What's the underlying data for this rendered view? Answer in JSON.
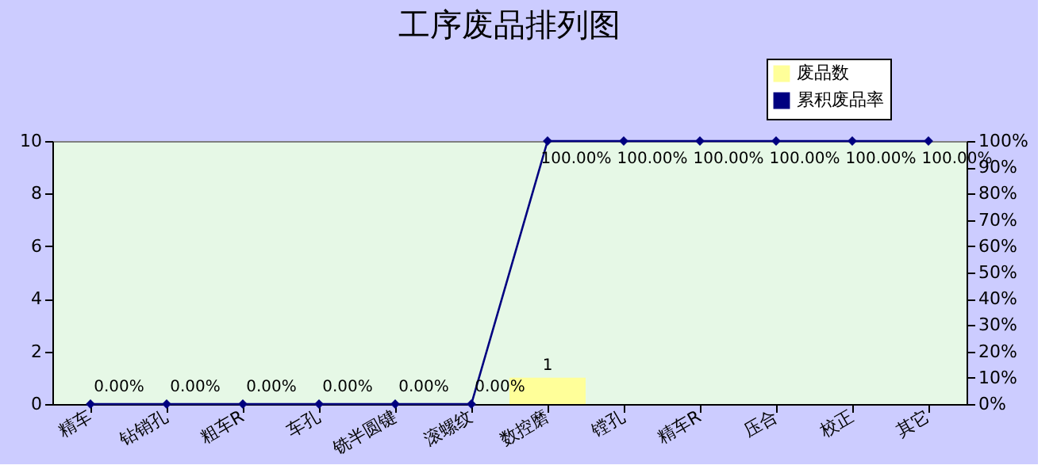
{
  "chart_data": {
    "type": "bar",
    "title": "工序废品排列图",
    "categories": [
      "精车",
      "钻销孔",
      "粗车R",
      "车孔",
      "铣半圆键",
      "滚螺纹",
      "数控磨",
      "镗孔",
      "精车R",
      "压合",
      "校正",
      "其它"
    ],
    "series": [
      {
        "name": "废品数",
        "type": "bar",
        "color": "#ffff99",
        "values": [
          0,
          0,
          0,
          0,
          0,
          0,
          1,
          0,
          0,
          0,
          0,
          0
        ],
        "value_labels": [
          null,
          null,
          null,
          null,
          null,
          null,
          "1",
          null,
          null,
          null,
          null,
          null
        ]
      },
      {
        "name": "累积废品率",
        "type": "line",
        "axis": "y2",
        "color": "#000080",
        "values": [
          0,
          0,
          0,
          0,
          0,
          0,
          100,
          100,
          100,
          100,
          100,
          100
        ],
        "value_labels": [
          "0.00%",
          "0.00%",
          "0.00%",
          "0.00%",
          "0.00%",
          "0.00%",
          "100.00%",
          "100.00%",
          "100.00%",
          "100.00%",
          "100.00%",
          "100.00%"
        ]
      }
    ],
    "ylim": [
      0,
      10
    ],
    "yticks": [
      0,
      2,
      4,
      6,
      8,
      10
    ],
    "y2lim": [
      0,
      100
    ],
    "y2ticks": [
      {
        "value": 0,
        "label": "0%"
      },
      {
        "value": 10,
        "label": "10%"
      },
      {
        "value": 20,
        "label": "20%"
      },
      {
        "value": 30,
        "label": "30%"
      },
      {
        "value": 40,
        "label": "40%"
      },
      {
        "value": 50,
        "label": "50%"
      },
      {
        "value": 60,
        "label": "60%"
      },
      {
        "value": 70,
        "label": "70%"
      },
      {
        "value": 80,
        "label": "80%"
      },
      {
        "value": 90,
        "label": "90%"
      },
      {
        "value": 100,
        "label": "100%"
      }
    ],
    "marker": "diamond",
    "grid": false,
    "legend": "top right"
  }
}
